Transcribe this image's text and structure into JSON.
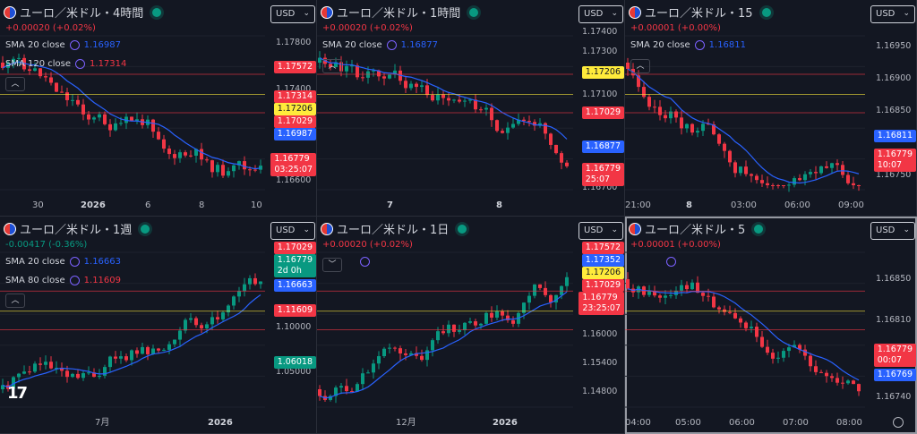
{
  "panels": [
    {
      "title": "ユーロ／米ドル・4時間",
      "change": "+0.00020 (+0.02%)",
      "currency": "USD",
      "indicators": [
        {
          "label": "SMA 20 close",
          "value": "1.16987",
          "color": "#2962ff"
        },
        {
          "label": "SMA 120 close",
          "value": "1.17314",
          "color": "#f23645"
        }
      ],
      "yticks": [
        "1.17800",
        "1.17400",
        "1.16600"
      ],
      "price_tags": [
        "1.17572",
        "1.17314",
        "1.17206",
        "1.17029",
        "1.16987"
      ],
      "last_price": "1.16779",
      "countdown": "03:25:07",
      "xticks": [
        "30",
        "2026",
        "6",
        "8",
        "10"
      ]
    },
    {
      "title": "ユーロ／米ドル・1時間",
      "change": "+0.00020 (+0.02%)",
      "currency": "USD",
      "indicators": [
        {
          "label": "SMA 20 close",
          "value": "1.16877",
          "color": "#2962ff"
        }
      ],
      "yticks": [
        "1.17400",
        "1.17300",
        "1.17100",
        "1.16700"
      ],
      "price_tags": [
        "1.17206",
        "1.17029",
        "1.16877"
      ],
      "last_price": "1.16779",
      "countdown": "25:07",
      "xticks": [
        "7",
        "8"
      ]
    },
    {
      "title": "ユーロ／米ドル・15",
      "change": "+0.00001 (+0.00%)",
      "currency": "USD",
      "indicators": [
        {
          "label": "SMA 20 close",
          "value": "1.16811",
          "color": "#2962ff"
        }
      ],
      "yticks": [
        "1.16950",
        "1.16900",
        "1.16850",
        "1.16750"
      ],
      "price_tags": [
        "1.16811"
      ],
      "last_price": "1.16779",
      "countdown": "10:07",
      "xticks": [
        "21:00",
        "8",
        "03:00",
        "06:00",
        "09:00"
      ]
    },
    {
      "title": "ユーロ／米ドル・1週",
      "change": "-0.00417 (-0.36%)",
      "currency": "USD",
      "indicators": [
        {
          "label": "SMA 20 close",
          "value": "1.16663",
          "color": "#2962ff"
        },
        {
          "label": "SMA 80 close",
          "value": "1.11609",
          "color": "#f23645"
        }
      ],
      "yticks": [
        "1.10000",
        "1.05000"
      ],
      "price_tags": [
        "1.17029",
        "1.16663",
        "1.11609",
        "1.06018"
      ],
      "last_price": "1.16779",
      "countdown": "2d 0h",
      "xticks": [
        "7月",
        "2026"
      ]
    },
    {
      "title": "ユーロ／米ドル・1日",
      "change": "+0.00020 (+0.02%)",
      "currency": "USD",
      "indicators": [],
      "yticks": [
        "1.16000",
        "1.15400",
        "1.14800"
      ],
      "price_tags": [
        "1.17572",
        "1.17352",
        "1.17206",
        "1.17029"
      ],
      "last_price": "1.16779",
      "countdown": "23:25:07",
      "xticks": [
        "12月",
        "2026"
      ]
    },
    {
      "title": "ユーロ／米ドル・5",
      "change": "+0.00001 (+0.00%)",
      "currency": "USD",
      "indicators": [],
      "yticks": [
        "1.16850",
        "1.16810",
        "1.16740"
      ],
      "price_tags": [
        "1.16769"
      ],
      "last_price": "1.16779",
      "countdown": "00:07",
      "xticks": [
        "04:00",
        "05:00",
        "06:00",
        "07:00",
        "08:00"
      ]
    }
  ],
  "logo": "17",
  "colors": {
    "up": "#089981",
    "down": "#f23645",
    "sma_fast": "#2962ff",
    "sma_slow": "#f23645",
    "level": "#ffeb3b"
  }
}
